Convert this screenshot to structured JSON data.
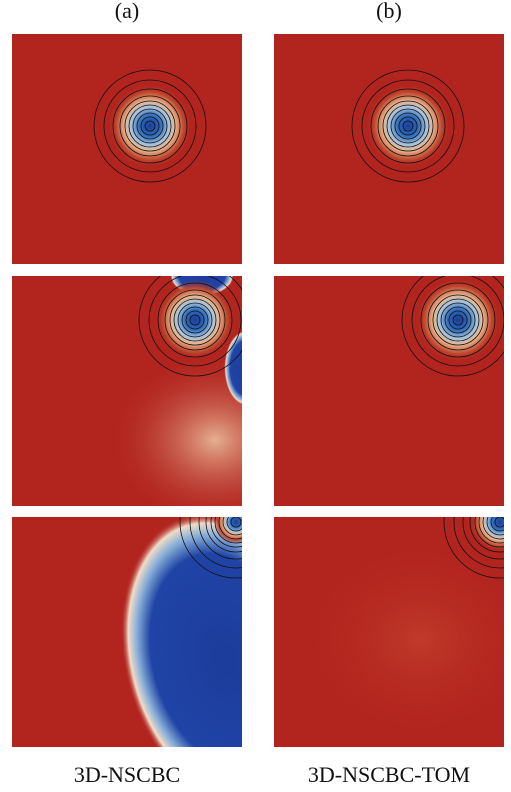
{
  "columns": [
    "(a)",
    "(b)"
  ],
  "captions": [
    "3D-NSCBC",
    "3D-NSCBC-TOM"
  ]
}
